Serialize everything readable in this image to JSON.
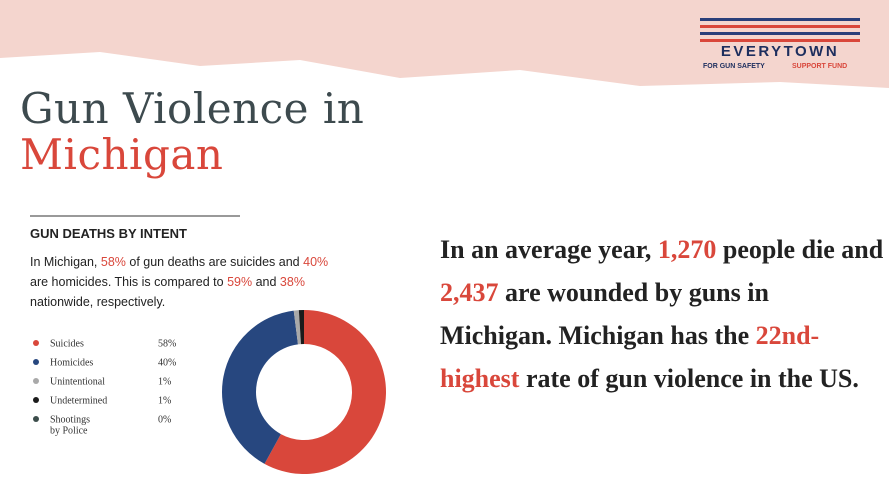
{
  "logo": {
    "name": "EVERYTOWN",
    "left": "FOR GUN SAFETY",
    "right": "SUPPORT FUND"
  },
  "title": [
    "Gun Violence in",
    "Michigan"
  ],
  "statement": [
    "In an average year, ",
    "1,270",
    " people die and ",
    "2,437",
    " are wounded by guns in Michigan. Michigan has the ",
    "22nd-highest",
    " rate of gun violence in the US."
  ],
  "chart_data": {
    "type": "donut",
    "title": "GUN DEATHS BY INTENT",
    "description": [
      "In Michigan, ",
      "58%",
      " of gun deaths are suicides and ",
      "40%",
      " are homicides. This is compared to ",
      "59%",
      " and ",
      "38%",
      " nationwide, respectively."
    ],
    "categories": [
      "Suicides",
      "Homicides",
      "Unintentional",
      "Undetermined",
      "Shootings by Police"
    ],
    "values": [
      58,
      40,
      1,
      1,
      0
    ],
    "value_labels": [
      "58%",
      "40%",
      "1%",
      "1%",
      "0%"
    ],
    "colors": [
      "#d9473b",
      "#27477f",
      "#a9a9a9",
      "#1b1b1b",
      "#3c4d4b"
    ]
  }
}
